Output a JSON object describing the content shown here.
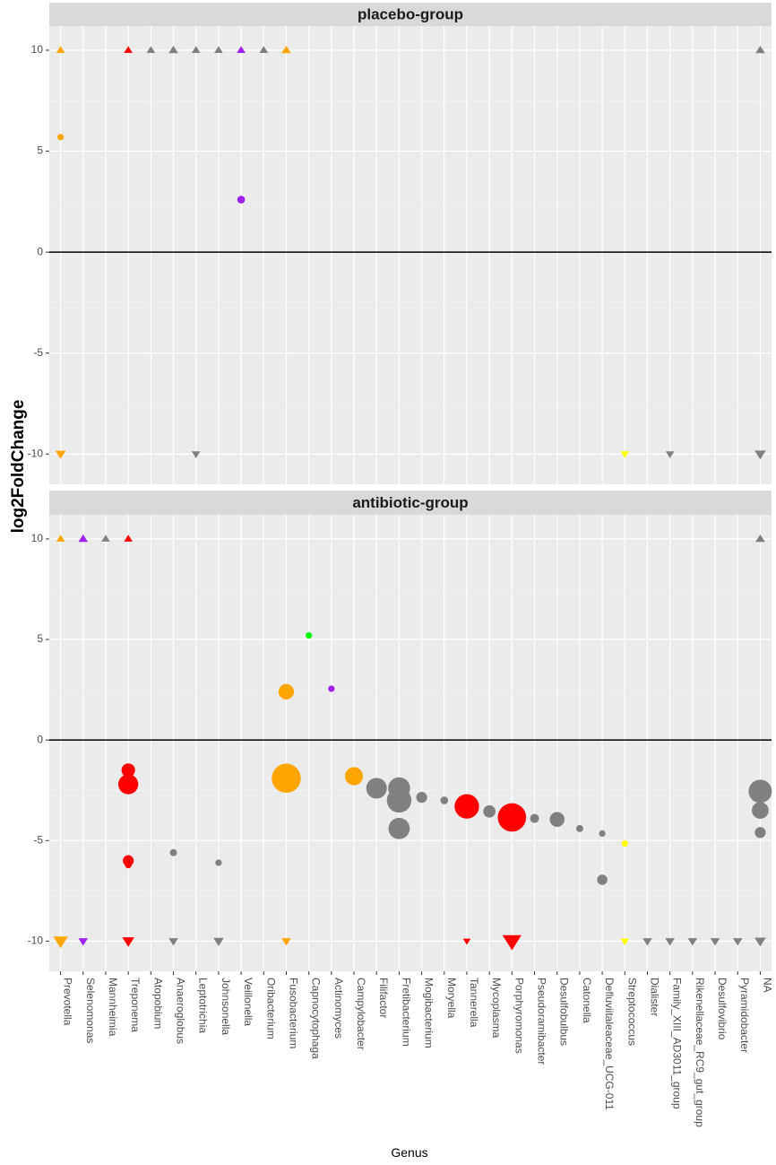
{
  "chart_data": {
    "type": "scatter",
    "xlabel": "Genus",
    "ylabel": "log2FoldChange",
    "ylim": [
      -11.5,
      11.2
    ],
    "yticks": [
      -10,
      -5,
      0,
      5,
      10
    ],
    "grid": true,
    "reference_line_y": 0,
    "colors": {
      "orange": "#FFA500",
      "red": "#FF0000",
      "grey": "#808080",
      "purple": "#A020F0",
      "yellow": "#FFFF00",
      "green": "#00FF00"
    },
    "categories": [
      "Prevotella",
      "Selenomonas",
      "Mannheimia",
      "Treponema",
      "Atopobium",
      "Anaeroglobus",
      "Leptotrichia",
      "Johnsonella",
      "Veillonella",
      "Oribacterium",
      "Fusobacterium",
      "Capnocytophaga",
      "Actinomyces",
      "Campylobacter",
      "Filifactor",
      "Fretibacterium",
      "Mogibacterium",
      "Moryella",
      "Tannerella",
      "Mycoplasma",
      "Porphyromonas",
      "Pseudoramibacter",
      "Desulfobulbus",
      "Catonella",
      "Defluviitaleaceae_UCG-011",
      "Streptococcus",
      "Dialister",
      "Family_XIII_AD3011_group",
      "Rikenellaceae_RC9_gut_group",
      "Desulfovibrio",
      "Pyramidobacter",
      "NA"
    ],
    "panels": [
      {
        "title": "placebo-group",
        "points": [
          {
            "genus": "Prevotella",
            "y": 10,
            "shape": "triangle-up",
            "color": "orange",
            "size": 1
          },
          {
            "genus": "Prevotella",
            "y": 5.7,
            "shape": "circle",
            "color": "orange",
            "size": 1
          },
          {
            "genus": "Prevotella",
            "y": -10,
            "shape": "triangle-down",
            "color": "orange",
            "size": 1.2
          },
          {
            "genus": "Treponema",
            "y": 10,
            "shape": "triangle-up",
            "color": "red",
            "size": 1
          },
          {
            "genus": "Atopobium",
            "y": 10,
            "shape": "triangle-up",
            "color": "grey",
            "size": 1
          },
          {
            "genus": "Anaeroglobus",
            "y": 10,
            "shape": "triangle-up",
            "color": "grey",
            "size": 1.1
          },
          {
            "genus": "Leptotrichia",
            "y": 10,
            "shape": "triangle-up",
            "color": "grey",
            "size": 1
          },
          {
            "genus": "Leptotrichia",
            "y": -10,
            "shape": "triangle-down",
            "color": "grey",
            "size": 1
          },
          {
            "genus": "Johnsonella",
            "y": 10,
            "shape": "triangle-up",
            "color": "grey",
            "size": 1
          },
          {
            "genus": "Veillonella",
            "y": 10,
            "shape": "triangle-up",
            "color": "purple",
            "size": 1
          },
          {
            "genus": "Veillonella",
            "y": 2.6,
            "shape": "circle",
            "color": "purple",
            "size": 1.2
          },
          {
            "genus": "Oribacterium",
            "y": 10,
            "shape": "triangle-up",
            "color": "grey",
            "size": 1
          },
          {
            "genus": "Fusobacterium",
            "y": 10,
            "shape": "triangle-up",
            "color": "orange",
            "size": 1.1
          },
          {
            "genus": "Streptococcus",
            "y": -10,
            "shape": "triangle-down",
            "color": "yellow",
            "size": 1
          },
          {
            "genus": "Family_XIII_AD3011_group",
            "y": -10,
            "shape": "triangle-down",
            "color": "grey",
            "size": 1
          },
          {
            "genus": "NA",
            "y": 10,
            "shape": "triangle-up",
            "color": "grey",
            "size": 1.1
          },
          {
            "genus": "NA",
            "y": -10,
            "shape": "triangle-down",
            "color": "grey",
            "size": 1.3
          }
        ]
      },
      {
        "title": "antibiotic-group",
        "points": [
          {
            "genus": "Prevotella",
            "y": 10,
            "shape": "triangle-up",
            "color": "orange",
            "size": 1
          },
          {
            "genus": "Prevotella",
            "y": -10,
            "shape": "triangle-down",
            "color": "orange",
            "size": 1.7
          },
          {
            "genus": "Selenomonas",
            "y": 10,
            "shape": "triangle-up",
            "color": "purple",
            "size": 1.1
          },
          {
            "genus": "Selenomonas",
            "y": -10,
            "shape": "triangle-down",
            "color": "purple",
            "size": 1.1
          },
          {
            "genus": "Mannheimia",
            "y": 10,
            "shape": "triangle-up",
            "color": "grey",
            "size": 1
          },
          {
            "genus": "Treponema",
            "y": 10,
            "shape": "triangle-up",
            "color": "red",
            "size": 1
          },
          {
            "genus": "Treponema",
            "y": -1.5,
            "shape": "circle",
            "color": "red",
            "size": 2.1
          },
          {
            "genus": "Treponema",
            "y": -2.2,
            "shape": "circle",
            "color": "red",
            "size": 3.1
          },
          {
            "genus": "Treponema",
            "y": -6.0,
            "shape": "circle",
            "color": "red",
            "size": 1.7
          },
          {
            "genus": "Treponema",
            "y": -6.2,
            "shape": "circle",
            "color": "red",
            "size": 1.1
          },
          {
            "genus": "Treponema",
            "y": -10,
            "shape": "triangle-down",
            "color": "red",
            "size": 1.4
          },
          {
            "genus": "Anaeroglobus",
            "y": -5.6,
            "shape": "circle",
            "color": "grey",
            "size": 1.1
          },
          {
            "genus": "Anaeroglobus",
            "y": -10,
            "shape": "triangle-down",
            "color": "grey",
            "size": 1.1
          },
          {
            "genus": "Johnsonella",
            "y": -6.1,
            "shape": "circle",
            "color": "grey",
            "size": 1
          },
          {
            "genus": "Johnsonella",
            "y": -10,
            "shape": "triangle-down",
            "color": "grey",
            "size": 1.2
          },
          {
            "genus": "Fusobacterium",
            "y": 2.4,
            "shape": "circle",
            "color": "orange",
            "size": 2.4
          },
          {
            "genus": "Fusobacterium",
            "y": -1.9,
            "shape": "circle",
            "color": "orange",
            "size": 4.5
          },
          {
            "genus": "Fusobacterium",
            "y": -10,
            "shape": "triangle-down",
            "color": "orange",
            "size": 1.1
          },
          {
            "genus": "Capnocytophaga",
            "y": 5.2,
            "shape": "circle",
            "color": "green",
            "size": 1
          },
          {
            "genus": "Actinomyces",
            "y": 2.55,
            "shape": "circle",
            "color": "purple",
            "size": 1
          },
          {
            "genus": "Campylobacter",
            "y": -1.8,
            "shape": "circle",
            "color": "orange",
            "size": 2.8
          },
          {
            "genus": "Filifactor",
            "y": -2.4,
            "shape": "circle",
            "color": "grey",
            "size": 3.2
          },
          {
            "genus": "Fretibacterium",
            "y": -2.4,
            "shape": "circle",
            "color": "grey",
            "size": 3.4
          },
          {
            "genus": "Fretibacterium",
            "y": -3.0,
            "shape": "circle",
            "color": "grey",
            "size": 3.8
          },
          {
            "genus": "Fretibacterium",
            "y": -4.4,
            "shape": "circle",
            "color": "grey",
            "size": 3.3
          },
          {
            "genus": "Mogibacterium",
            "y": -2.85,
            "shape": "circle",
            "color": "grey",
            "size": 1.7
          },
          {
            "genus": "Moryella",
            "y": -3.0,
            "shape": "circle",
            "color": "grey",
            "size": 1.2
          },
          {
            "genus": "Tannerella",
            "y": -3.3,
            "shape": "circle",
            "color": "red",
            "size": 3.8
          },
          {
            "genus": "Tannerella",
            "y": -10,
            "shape": "triangle-down",
            "color": "red",
            "size": 0.9
          },
          {
            "genus": "Mycoplasma",
            "y": -3.55,
            "shape": "circle",
            "color": "grey",
            "size": 1.9
          },
          {
            "genus": "Porphyromonas",
            "y": -3.85,
            "shape": "circle",
            "color": "red",
            "size": 4.4
          },
          {
            "genus": "Porphyromonas",
            "y": -10,
            "shape": "triangle-down",
            "color": "red",
            "size": 2.2
          },
          {
            "genus": "Pseudoramibacter",
            "y": -3.9,
            "shape": "circle",
            "color": "grey",
            "size": 1.4
          },
          {
            "genus": "Desulfobulbus",
            "y": -3.95,
            "shape": "circle",
            "color": "grey",
            "size": 2.3
          },
          {
            "genus": "Catonella",
            "y": -4.4,
            "shape": "circle",
            "color": "grey",
            "size": 1.1
          },
          {
            "genus": "Defluviitaleaceae_UCG-011",
            "y": -4.65,
            "shape": "circle",
            "color": "grey",
            "size": 1
          },
          {
            "genus": "Defluviitaleaceae_UCG-011",
            "y": -6.95,
            "shape": "circle",
            "color": "grey",
            "size": 1.6
          },
          {
            "genus": "Streptococcus",
            "y": -5.15,
            "shape": "circle",
            "color": "yellow",
            "size": 1
          },
          {
            "genus": "Streptococcus",
            "y": -10,
            "shape": "triangle-down",
            "color": "yellow",
            "size": 1
          },
          {
            "genus": "Dialister",
            "y": -10,
            "shape": "triangle-down",
            "color": "grey",
            "size": 1.1
          },
          {
            "genus": "Family_XIII_AD3011_group",
            "y": -10,
            "shape": "triangle-down",
            "color": "grey",
            "size": 1.1
          },
          {
            "genus": "Rikenellaceae_RC9_gut_group",
            "y": -10,
            "shape": "triangle-down",
            "color": "grey",
            "size": 1.1
          },
          {
            "genus": "Desulfovibrio",
            "y": -10,
            "shape": "triangle-down",
            "color": "grey",
            "size": 1.1
          },
          {
            "genus": "Pyramidobacter",
            "y": -10,
            "shape": "triangle-down",
            "color": "grey",
            "size": 1.1
          },
          {
            "genus": "NA",
            "y": 10,
            "shape": "triangle-up",
            "color": "grey",
            "size": 1.1
          },
          {
            "genus": "NA",
            "y": -2.55,
            "shape": "circle",
            "color": "grey",
            "size": 3.6
          },
          {
            "genus": "NA",
            "y": -3.5,
            "shape": "circle",
            "color": "grey",
            "size": 2.6
          },
          {
            "genus": "NA",
            "y": -4.6,
            "shape": "circle",
            "color": "grey",
            "size": 1.7
          },
          {
            "genus": "NA",
            "y": -10,
            "shape": "triangle-down",
            "color": "grey",
            "size": 1.3
          }
        ]
      }
    ]
  }
}
